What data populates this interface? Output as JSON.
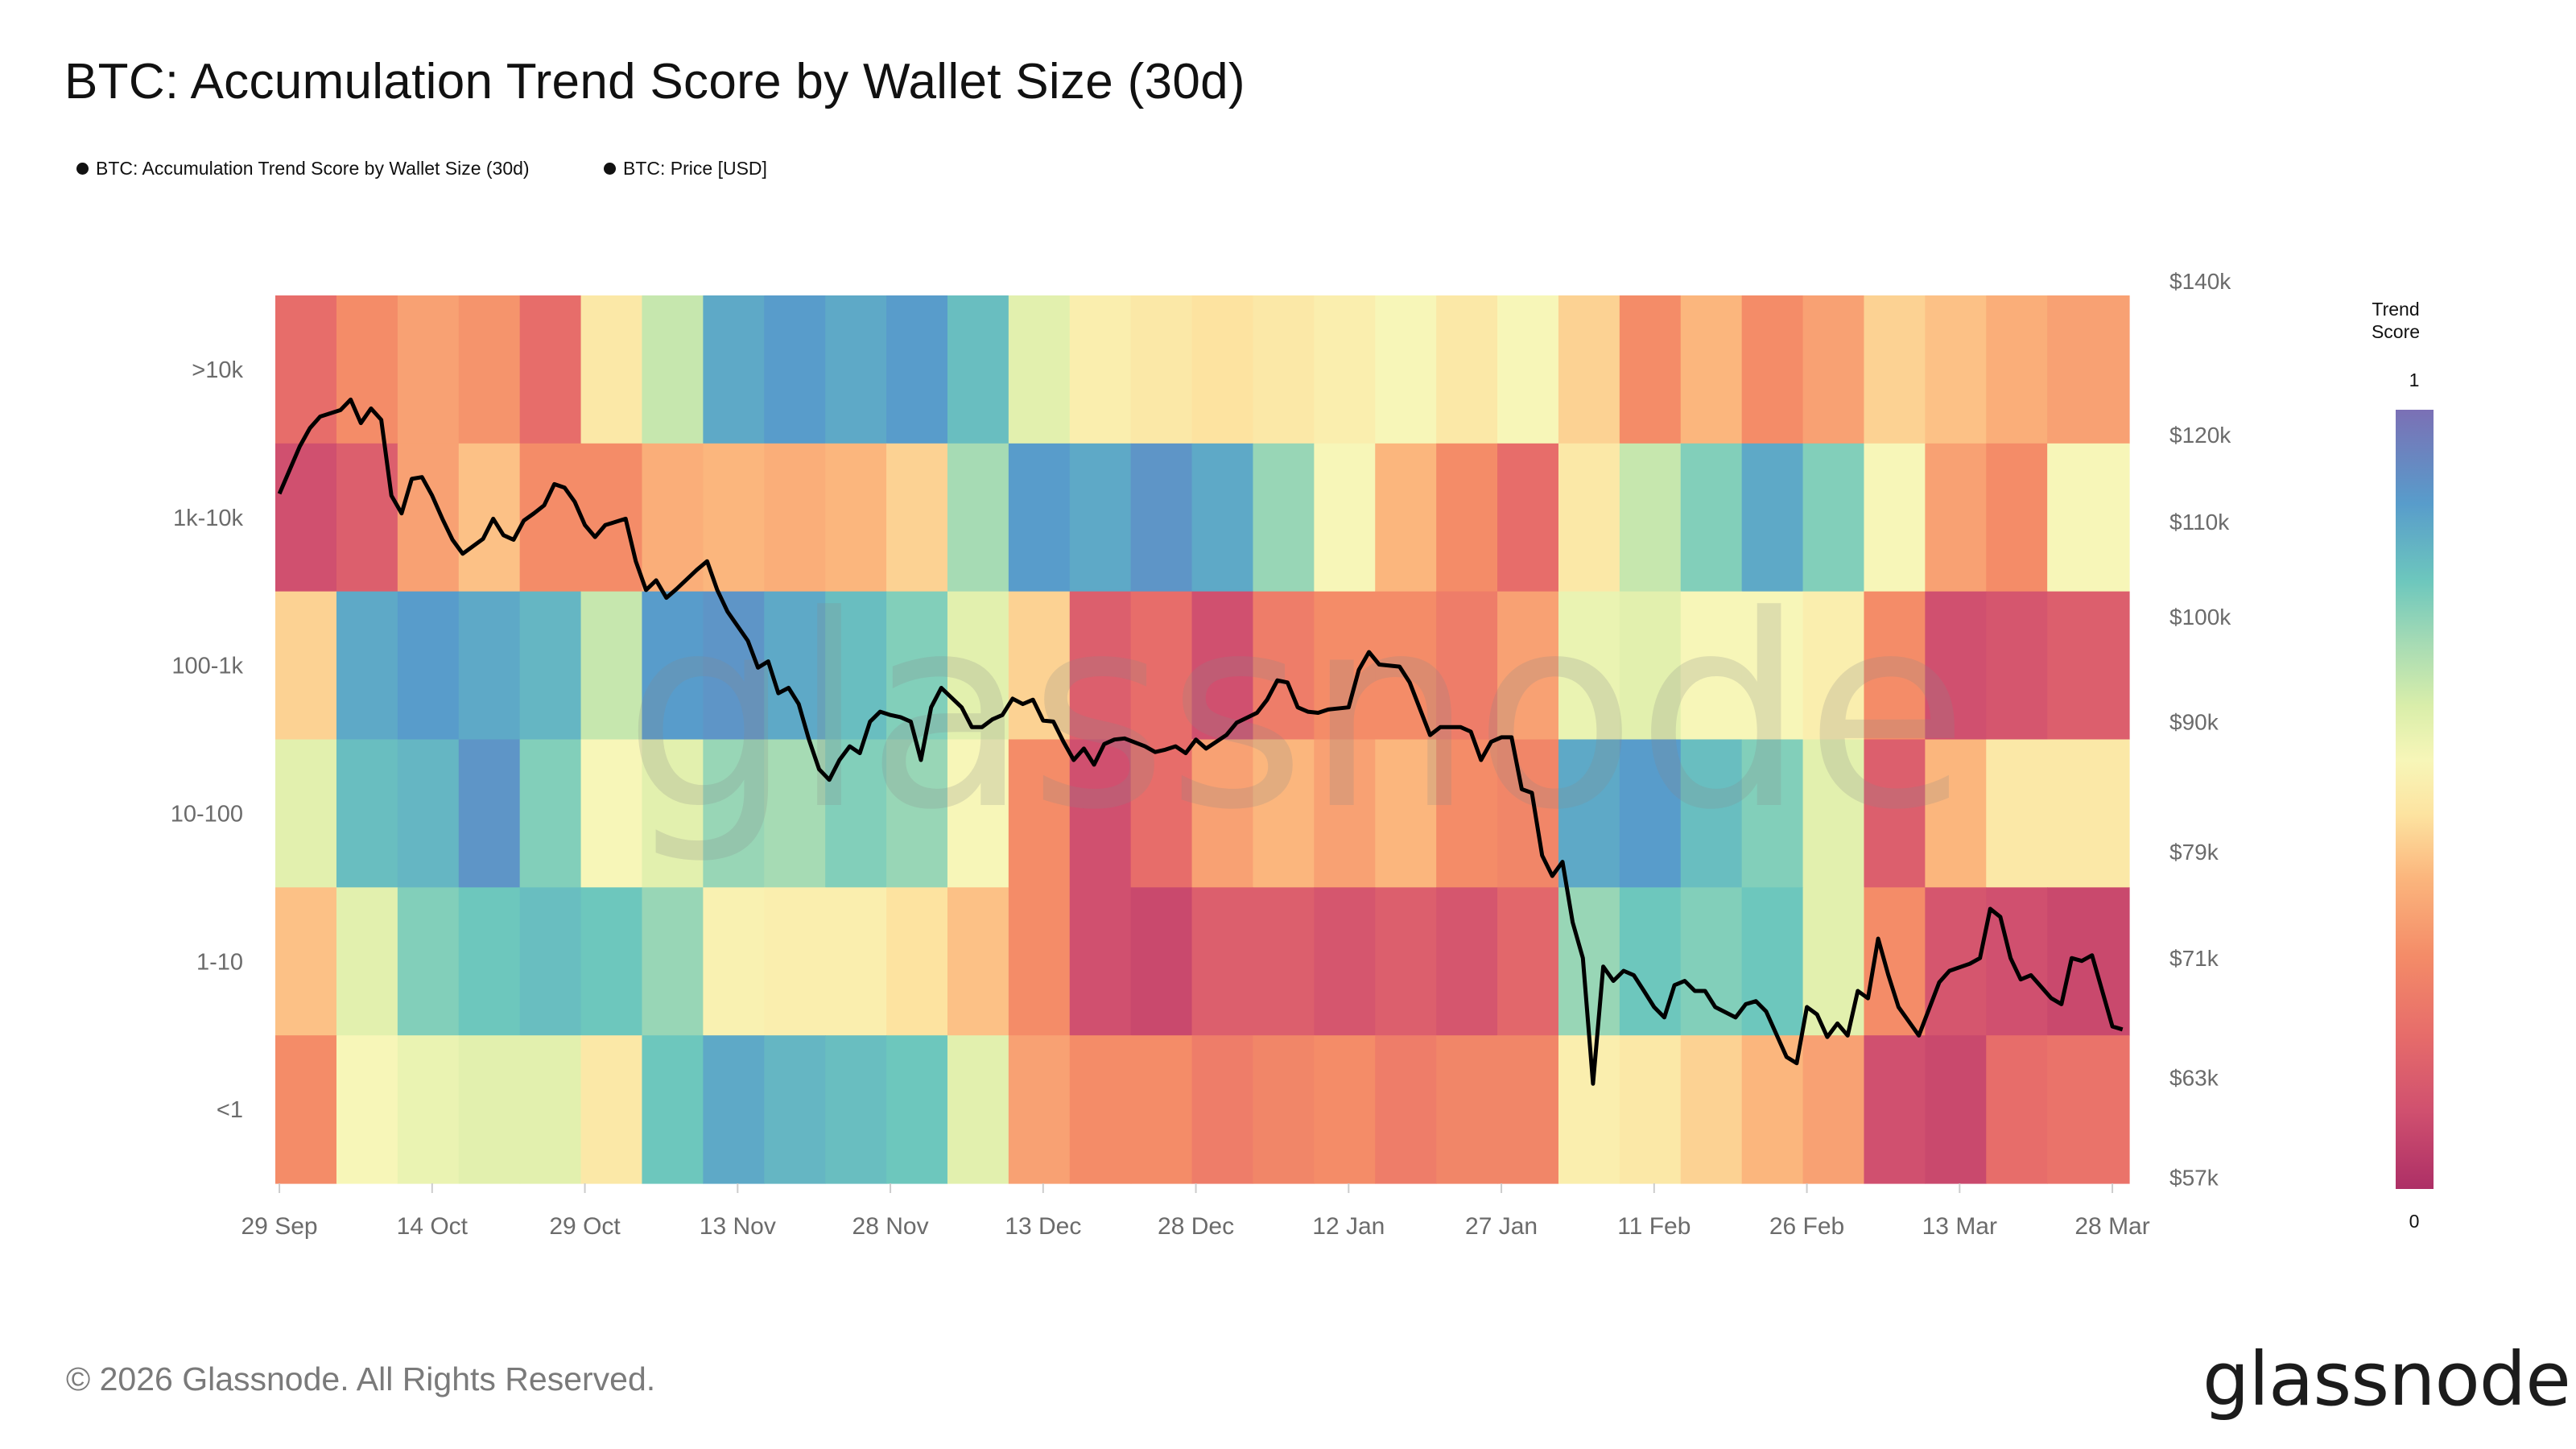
{
  "title": "BTC: Accumulation Trend Score by Wallet Size (30d)",
  "legend": [
    {
      "label": "BTC: Accumulation Trend Score by Wallet Size (30d)",
      "color": "#111111"
    },
    {
      "label": "BTC: Price [USD]",
      "color": "#111111"
    }
  ],
  "watermark": "glassnode",
  "footer": {
    "copyright": "© 2026 Glassnode. All Rights Reserved.",
    "logo": "glassnode"
  },
  "colorbar": {
    "title_line1": "Trend",
    "title_line2": "Score",
    "max_label": "1",
    "min_label": "0",
    "stops": [
      [
        0,
        "#ad2f66"
      ],
      [
        0.1,
        "#d0506f"
      ],
      [
        0.2,
        "#e76d6a"
      ],
      [
        0.3,
        "#f48c68"
      ],
      [
        0.4,
        "#fbb67d"
      ],
      [
        0.48,
        "#fde3a0"
      ],
      [
        0.55,
        "#f7f6b8"
      ],
      [
        0.62,
        "#d9eeaa"
      ],
      [
        0.7,
        "#a6dbb4"
      ],
      [
        0.78,
        "#6dc7bd"
      ],
      [
        0.88,
        "#589ccb"
      ],
      [
        1,
        "#7b70b5"
      ]
    ]
  },
  "chart_data": {
    "type": "heatmap",
    "title": "BTC: Accumulation Trend Score by Wallet Size (30d)",
    "x_ticks": [
      "29 Sep",
      "14 Oct",
      "29 Oct",
      "13 Nov",
      "28 Nov",
      "13 Dec",
      "28 Dec",
      "12 Jan",
      "27 Jan",
      "11 Feb",
      "26 Feb",
      "13 Mar",
      "28 Mar"
    ],
    "x_end": "29 Mar",
    "value_range": [
      0,
      1
    ],
    "rows": [
      ">10k",
      "1k-10k",
      "100-1k",
      "10-100",
      "1-10",
      "<1"
    ],
    "column_dates": [
      "29 Sep",
      "5 Oct",
      "11 Oct",
      "17 Oct",
      "23 Oct",
      "29 Oct",
      "4 Nov",
      "10 Nov",
      "16 Nov",
      "22 Nov",
      "28 Nov",
      "4 Dec",
      "10 Dec",
      "16 Dec",
      "22 Dec",
      "28 Dec",
      "3 Jan",
      "9 Jan",
      "15 Jan",
      "21 Jan",
      "27 Jan",
      "2 Feb",
      "8 Feb",
      "14 Feb",
      "20 Feb",
      "26 Feb",
      "4 Mar",
      "10 Mar",
      "16 Mar",
      "22 Mar"
    ],
    "values": [
      [
        0.2,
        0.3,
        0.35,
        0.32,
        0.2,
        0.5,
        0.65,
        0.85,
        0.88,
        0.85,
        0.88,
        0.8,
        0.6,
        0.52,
        0.5,
        0.48,
        0.5,
        0.52,
        0.55,
        0.5,
        0.55,
        0.45,
        0.3,
        0.4,
        0.3,
        0.35,
        0.45,
        0.42,
        0.38,
        0.35
      ],
      [
        0.1,
        0.15,
        0.35,
        0.42,
        0.3,
        0.3,
        0.38,
        0.4,
        0.38,
        0.4,
        0.45,
        0.7,
        0.88,
        0.85,
        0.9,
        0.85,
        0.72,
        0.55,
        0.4,
        0.3,
        0.2,
        0.5,
        0.65,
        0.75,
        0.85,
        0.75,
        0.55,
        0.35,
        0.3,
        0.55
      ],
      [
        0.45,
        0.85,
        0.88,
        0.85,
        0.82,
        0.65,
        0.88,
        0.9,
        0.85,
        0.8,
        0.75,
        0.6,
        0.45,
        0.15,
        0.2,
        0.1,
        0.25,
        0.3,
        0.3,
        0.25,
        0.35,
        0.58,
        0.6,
        0.55,
        0.55,
        0.52,
        0.3,
        0.1,
        0.12,
        0.15
      ],
      [
        0.6,
        0.8,
        0.82,
        0.9,
        0.75,
        0.55,
        0.6,
        0.72,
        0.7,
        0.75,
        0.72,
        0.55,
        0.3,
        0.1,
        0.2,
        0.35,
        0.4,
        0.35,
        0.4,
        0.3,
        0.28,
        0.85,
        0.88,
        0.8,
        0.75,
        0.6,
        0.15,
        0.4,
        0.5,
        0.5
      ],
      [
        0.42,
        0.6,
        0.75,
        0.78,
        0.8,
        0.78,
        0.72,
        0.53,
        0.52,
        0.52,
        0.48,
        0.42,
        0.3,
        0.1,
        0.08,
        0.15,
        0.15,
        0.12,
        0.15,
        0.12,
        0.18,
        0.72,
        0.78,
        0.75,
        0.78,
        0.6,
        0.3,
        0.12,
        0.1,
        0.08
      ],
      [
        0.3,
        0.55,
        0.58,
        0.6,
        0.6,
        0.5,
        0.78,
        0.85,
        0.82,
        0.8,
        0.78,
        0.6,
        0.35,
        0.3,
        0.3,
        0.25,
        0.28,
        0.3,
        0.25,
        0.28,
        0.28,
        0.52,
        0.5,
        0.45,
        0.4,
        0.35,
        0.1,
        0.08,
        0.2,
        0.22
      ]
    ],
    "price_axis": {
      "scale": "log",
      "range": [
        57000,
        140000
      ],
      "ticks": [
        "$140k",
        "$120k",
        "$110k",
        "$100k",
        "$90k",
        "$79k",
        "$71k",
        "$63k",
        "$57k"
      ],
      "tick_values": [
        140000,
        120000,
        110000,
        100000,
        90000,
        79000,
        71000,
        63000,
        57000
      ]
    },
    "price_series": {
      "name": "BTC: Price [USD]",
      "color": "#000000",
      "points": [
        [
          "29 Sep",
          113100
        ],
        [
          "1 Oct",
          118600
        ],
        [
          "2 Oct",
          120800
        ],
        [
          "3 Oct",
          122200
        ],
        [
          "5 Oct",
          123000
        ],
        [
          "6 Oct",
          124300
        ],
        [
          "7 Oct",
          121400
        ],
        [
          "8 Oct",
          123200
        ],
        [
          "9 Oct",
          121800
        ],
        [
          "10 Oct",
          112900
        ],
        [
          "11 Oct",
          110900
        ],
        [
          "12 Oct",
          114800
        ],
        [
          "13 Oct",
          115000
        ],
        [
          "14 Oct",
          112900
        ],
        [
          "15 Oct",
          110300
        ],
        [
          "16 Oct",
          108000
        ],
        [
          "17 Oct",
          106500
        ],
        [
          "19 Oct",
          108100
        ],
        [
          "20 Oct",
          110300
        ],
        [
          "21 Oct",
          108500
        ],
        [
          "22 Oct",
          108000
        ],
        [
          "23 Oct",
          110100
        ],
        [
          "24 Oct",
          110900
        ],
        [
          "25 Oct",
          111800
        ],
        [
          "26 Oct",
          114200
        ],
        [
          "27 Oct",
          113800
        ],
        [
          "28 Oct",
          112200
        ],
        [
          "29 Oct",
          109600
        ],
        [
          "30 Oct",
          108300
        ],
        [
          "31 Oct",
          109600
        ],
        [
          "2 Nov",
          110300
        ],
        [
          "3 Nov",
          105700
        ],
        [
          "4 Nov",
          102700
        ],
        [
          "5 Nov",
          103700
        ],
        [
          "6 Nov",
          101900
        ],
        [
          "7 Nov",
          102800
        ],
        [
          "9 Nov",
          104800
        ],
        [
          "10 Nov",
          105700
        ],
        [
          "11 Nov",
          102700
        ],
        [
          "12 Nov",
          100500
        ],
        [
          "14 Nov",
          97600
        ],
        [
          "15 Nov",
          95000
        ],
        [
          "16 Nov",
          95600
        ],
        [
          "17 Nov",
          92600
        ],
        [
          "18 Nov",
          93100
        ],
        [
          "19 Nov",
          91600
        ],
        [
          "20 Nov",
          88400
        ],
        [
          "21 Nov",
          85800
        ],
        [
          "22 Nov",
          84900
        ],
        [
          "23 Nov",
          86600
        ],
        [
          "24 Nov",
          87800
        ],
        [
          "25 Nov",
          87200
        ],
        [
          "26 Nov",
          90000
        ],
        [
          "27 Nov",
          90900
        ],
        [
          "28 Nov",
          90600
        ],
        [
          "29 Nov",
          90400
        ],
        [
          "30 Nov",
          90000
        ],
        [
          "1 Dec",
          86600
        ],
        [
          "2 Dec",
          91300
        ],
        [
          "3 Dec",
          93100
        ],
        [
          "5 Dec",
          91300
        ],
        [
          "6 Dec",
          89500
        ],
        [
          "7 Dec",
          89500
        ],
        [
          "8 Dec",
          90200
        ],
        [
          "9 Dec",
          90600
        ],
        [
          "10 Dec",
          92100
        ],
        [
          "11 Dec",
          91600
        ],
        [
          "12 Dec",
          92000
        ],
        [
          "13 Dec",
          90100
        ],
        [
          "14 Dec",
          90000
        ],
        [
          "15 Dec",
          88200
        ],
        [
          "16 Dec",
          86600
        ],
        [
          "17 Dec",
          87600
        ],
        [
          "18 Dec",
          86200
        ],
        [
          "19 Dec",
          88000
        ],
        [
          "20 Dec",
          88400
        ],
        [
          "21 Dec",
          88500
        ],
        [
          "23 Dec",
          87800
        ],
        [
          "24 Dec",
          87300
        ],
        [
          "25 Dec",
          87500
        ],
        [
          "26 Dec",
          87800
        ],
        [
          "27 Dec",
          87200
        ],
        [
          "28 Dec",
          88400
        ],
        [
          "29 Dec",
          87600
        ],
        [
          "31 Dec",
          88800
        ],
        [
          "1 Jan",
          89900
        ],
        [
          "3 Jan",
          90800
        ],
        [
          "4 Jan",
          92000
        ],
        [
          "5 Jan",
          93800
        ],
        [
          "6 Jan",
          93600
        ],
        [
          "7 Jan",
          91300
        ],
        [
          "8 Jan",
          90900
        ],
        [
          "9 Jan",
          90800
        ],
        [
          "10 Jan",
          91100
        ],
        [
          "12 Jan",
          91300
        ],
        [
          "13 Jan",
          94800
        ],
        [
          "14 Jan",
          96500
        ],
        [
          "15 Jan",
          95300
        ],
        [
          "17 Jan",
          95100
        ],
        [
          "18 Jan",
          93600
        ],
        [
          "20 Jan",
          88800
        ],
        [
          "21 Jan",
          89500
        ],
        [
          "23 Jan",
          89500
        ],
        [
          "24 Jan",
          89100
        ],
        [
          "25 Jan",
          86600
        ],
        [
          "26 Jan",
          88200
        ],
        [
          "27 Jan",
          88600
        ],
        [
          "28 Jan",
          88600
        ],
        [
          "29 Jan",
          84100
        ],
        [
          "30 Jan",
          83800
        ],
        [
          "31 Jan",
          78700
        ],
        [
          "1 Feb",
          77100
        ],
        [
          "2 Feb",
          78200
        ],
        [
          "3 Feb",
          73600
        ],
        [
          "4 Feb",
          71000
        ],
        [
          "5 Feb",
          62600
        ],
        [
          "6 Feb",
          70400
        ],
        [
          "7 Feb",
          69400
        ],
        [
          "8 Feb",
          70100
        ],
        [
          "9 Feb",
          69800
        ],
        [
          "10 Feb",
          68700
        ],
        [
          "11 Feb",
          67600
        ],
        [
          "12 Feb",
          66900
        ],
        [
          "13 Feb",
          69100
        ],
        [
          "14 Feb",
          69400
        ],
        [
          "15 Feb",
          68700
        ],
        [
          "16 Feb",
          68700
        ],
        [
          "17 Feb",
          67600
        ],
        [
          "19 Feb",
          66900
        ],
        [
          "20 Feb",
          67800
        ],
        [
          "21 Feb",
          68000
        ],
        [
          "22 Feb",
          67300
        ],
        [
          "24 Feb",
          64300
        ],
        [
          "25 Feb",
          63900
        ],
        [
          "26 Feb",
          67600
        ],
        [
          "27 Feb",
          67100
        ],
        [
          "28 Feb",
          65600
        ],
        [
          "1 Mar",
          66500
        ],
        [
          "2 Mar",
          65700
        ],
        [
          "3 Mar",
          68700
        ],
        [
          "4 Mar",
          68200
        ],
        [
          "5 Mar",
          72400
        ],
        [
          "6 Mar",
          69800
        ],
        [
          "7 Mar",
          67600
        ],
        [
          "9 Mar",
          65700
        ],
        [
          "11 Mar",
          69300
        ],
        [
          "12 Mar",
          70100
        ],
        [
          "14 Mar",
          70600
        ],
        [
          "15 Mar",
          71000
        ],
        [
          "16 Mar",
          74600
        ],
        [
          "17 Mar",
          74000
        ],
        [
          "18 Mar",
          71000
        ],
        [
          "19 Mar",
          69500
        ],
        [
          "20 Mar",
          69800
        ],
        [
          "22 Mar",
          68200
        ],
        [
          "23 Mar",
          67800
        ],
        [
          "24 Mar",
          71000
        ],
        [
          "25 Mar",
          70800
        ],
        [
          "26 Mar",
          71200
        ],
        [
          "28 Mar",
          66300
        ],
        [
          "29 Mar",
          66100
        ]
      ]
    }
  }
}
